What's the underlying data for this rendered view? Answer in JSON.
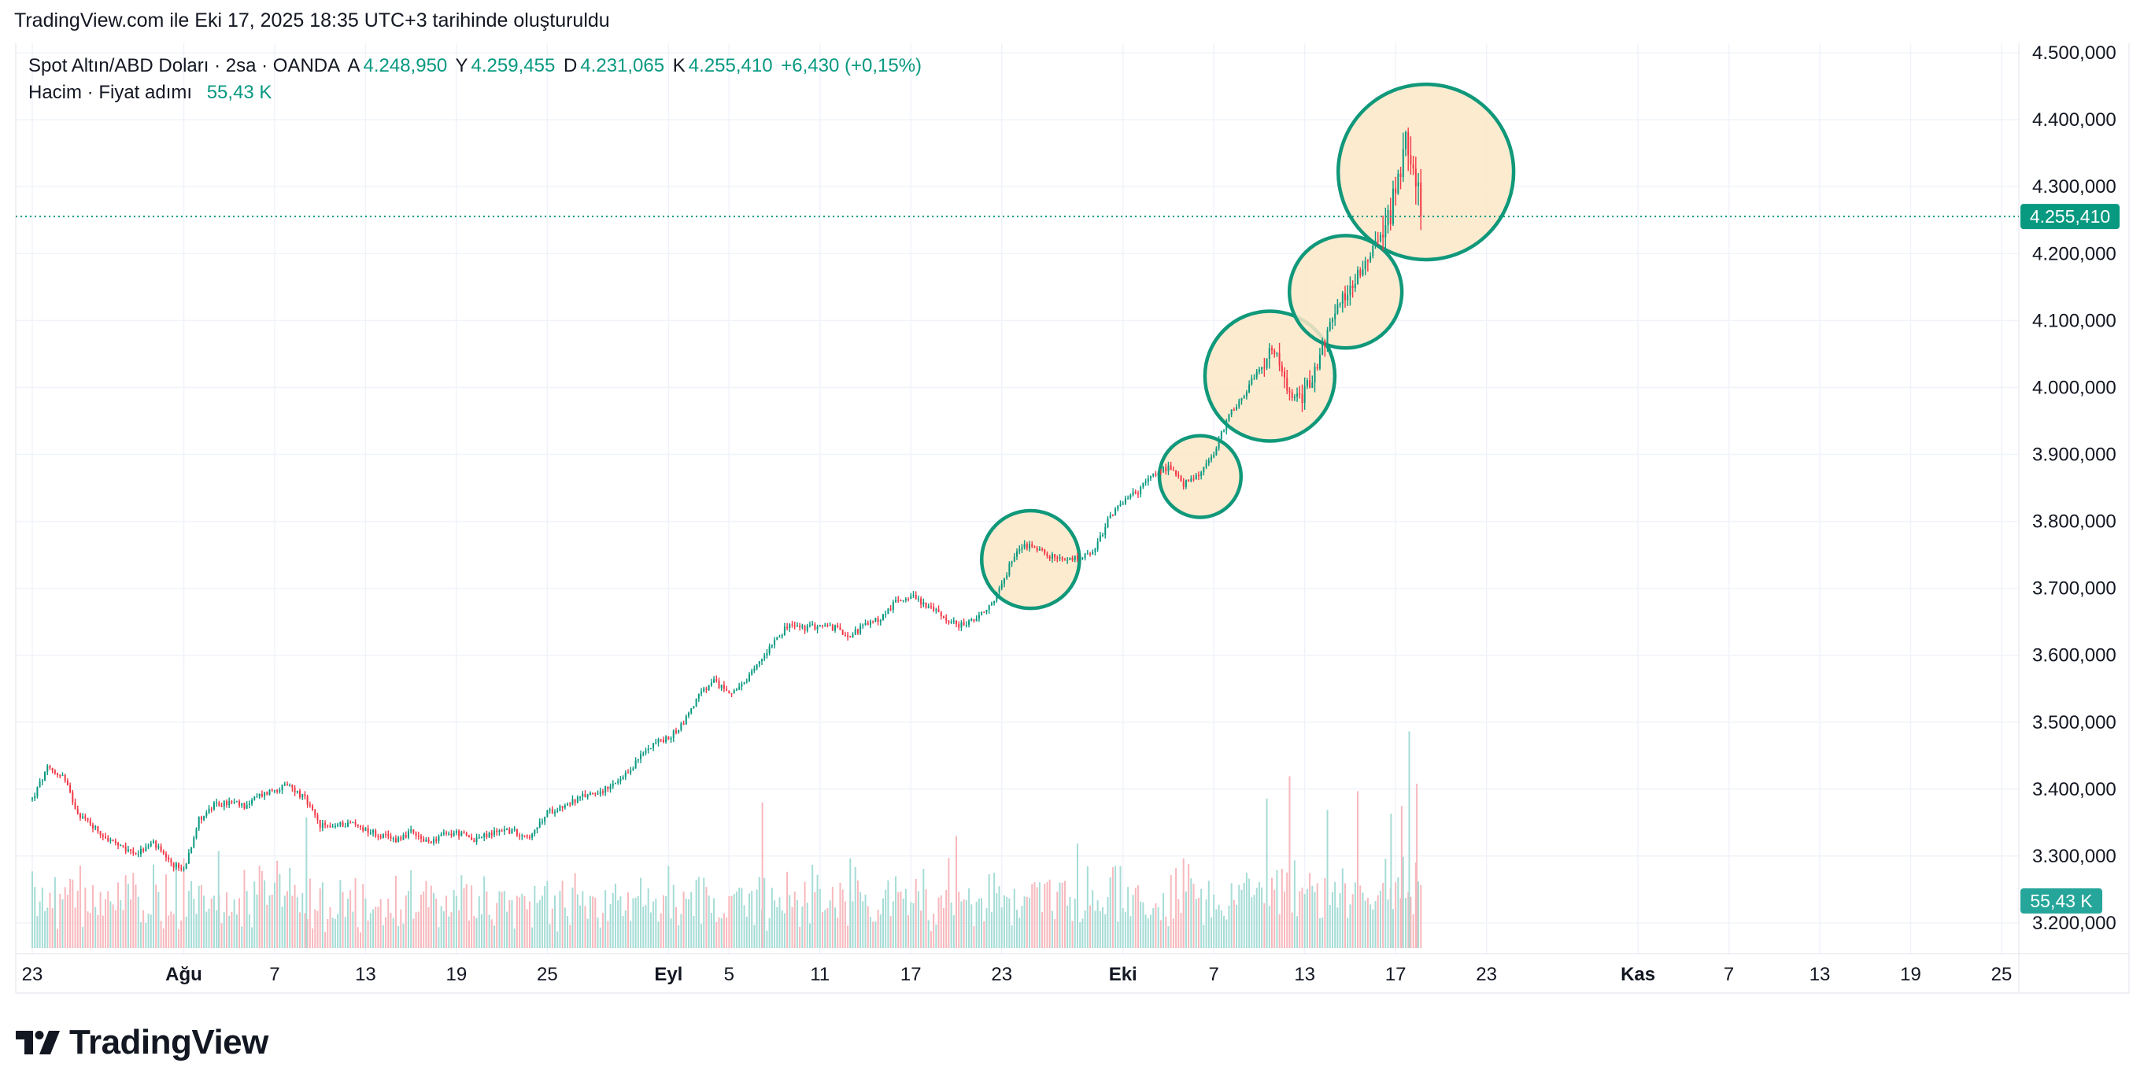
{
  "header": {
    "text": "TradingView.com ile Eki 17, 2025 18:35 UTC+3 tarihinde oluşturuldu"
  },
  "legend": {
    "symbol": "Spot Altın/ABD Doları · 2sa · OANDA",
    "open_label": "A",
    "open": "4.248,950",
    "high_label": "Y",
    "high": "4.259,455",
    "low_label": "D",
    "low": "4.231,065",
    "close_label": "K",
    "close": "4.255,410",
    "change": "+6,430 (+0,15%)",
    "volume_label": "Hacim · Fiyat adımı",
    "volume_value": "55,43 K"
  },
  "colors": {
    "up": "#089981",
    "down": "#f23645",
    "vol_up": "#a5dcd6",
    "vol_down": "#f7b8bc",
    "circle_stroke": "#10987a",
    "circle_fill": "#fde8c8",
    "grid": "#f0f3fa",
    "text": "#131722"
  },
  "logo": {
    "text": "TradingView",
    "icon": "tradingview-logo-icon"
  },
  "chart_data": {
    "type": "candlestick",
    "title": "Spot Altın/ABD Doları · 2sa · OANDA",
    "ylim": [
      3150,
      4520
    ],
    "y_ticks": [
      {
        "value": 3200,
        "label": "3.200,000"
      },
      {
        "value": 3300,
        "label": "3.300,000"
      },
      {
        "value": 3400,
        "label": "3.400,000"
      },
      {
        "value": 3500,
        "label": "3.500,000"
      },
      {
        "value": 3600,
        "label": "3.600,000"
      },
      {
        "value": 3700,
        "label": "3.700,000"
      },
      {
        "value": 3800,
        "label": "3.800,000"
      },
      {
        "value": 3900,
        "label": "3.900,000"
      },
      {
        "value": 4000,
        "label": "4.000,000"
      },
      {
        "value": 4100,
        "label": "4.100,000"
      },
      {
        "value": 4200,
        "label": "4.200,000"
      },
      {
        "value": 4300,
        "label": "4.300,000"
      },
      {
        "value": 4400,
        "label": "4.400,000"
      },
      {
        "value": 4500,
        "label": "4.500,000"
      }
    ],
    "x_ticks": [
      {
        "day": -1,
        "label": "23",
        "bold": false
      },
      {
        "day": 9,
        "label": "Ağu",
        "bold": true
      },
      {
        "day": 15,
        "label": "7",
        "bold": false
      },
      {
        "day": 21,
        "label": "13",
        "bold": false
      },
      {
        "day": 27,
        "label": "19",
        "bold": false
      },
      {
        "day": 33,
        "label": "25",
        "bold": false
      },
      {
        "day": 41,
        "label": "Eyl",
        "bold": true
      },
      {
        "day": 45,
        "label": "5",
        "bold": false
      },
      {
        "day": 51,
        "label": "11",
        "bold": false
      },
      {
        "day": 57,
        "label": "17",
        "bold": false
      },
      {
        "day": 63,
        "label": "23",
        "bold": false
      },
      {
        "day": 71,
        "label": "Eki",
        "bold": true
      },
      {
        "day": 77,
        "label": "7",
        "bold": false
      },
      {
        "day": 83,
        "label": "13",
        "bold": false
      },
      {
        "day": 89,
        "label": "17",
        "bold": false
      },
      {
        "day": 95,
        "label": "23",
        "bold": false
      },
      {
        "day": 105,
        "label": "Kas",
        "bold": true
      },
      {
        "day": 111,
        "label": "7",
        "bold": false
      },
      {
        "day": 117,
        "label": "13",
        "bold": false
      },
      {
        "day": 123,
        "label": "19",
        "bold": false
      },
      {
        "day": 129,
        "label": "25",
        "bold": false
      }
    ],
    "price_path": [
      [
        -1,
        3385
      ],
      [
        0,
        3430
      ],
      [
        1,
        3420
      ],
      [
        2,
        3365
      ],
      [
        3,
        3345
      ],
      [
        4,
        3325
      ],
      [
        5,
        3310
      ],
      [
        6,
        3305
      ],
      [
        7,
        3320
      ],
      [
        8,
        3290
      ],
      [
        9,
        3280
      ],
      [
        10,
        3355
      ],
      [
        11,
        3375
      ],
      [
        12,
        3380
      ],
      [
        13,
        3375
      ],
      [
        14,
        3390
      ],
      [
        15,
        3400
      ],
      [
        16,
        3405
      ],
      [
        17,
        3385
      ],
      [
        18,
        3345
      ],
      [
        19,
        3345
      ],
      [
        20,
        3350
      ],
      [
        21,
        3340
      ],
      [
        22,
        3330
      ],
      [
        23,
        3325
      ],
      [
        24,
        3335
      ],
      [
        25,
        3320
      ],
      [
        26,
        3330
      ],
      [
        27,
        3335
      ],
      [
        28,
        3325
      ],
      [
        29,
        3330
      ],
      [
        30,
        3340
      ],
      [
        31,
        3335
      ],
      [
        32,
        3330
      ],
      [
        33,
        3365
      ],
      [
        34,
        3375
      ],
      [
        35,
        3385
      ],
      [
        36,
        3395
      ],
      [
        37,
        3400
      ],
      [
        38,
        3415
      ],
      [
        39,
        3445
      ],
      [
        40,
        3470
      ],
      [
        41,
        3475
      ],
      [
        42,
        3500
      ],
      [
        43,
        3540
      ],
      [
        44,
        3560
      ],
      [
        45,
        3545
      ],
      [
        46,
        3555
      ],
      [
        47,
        3590
      ],
      [
        48,
        3625
      ],
      [
        49,
        3645
      ],
      [
        50,
        3640
      ],
      [
        51,
        3645
      ],
      [
        52,
        3640
      ],
      [
        53,
        3630
      ],
      [
        54,
        3645
      ],
      [
        55,
        3655
      ],
      [
        56,
        3680
      ],
      [
        57,
        3690
      ],
      [
        58,
        3675
      ],
      [
        59,
        3660
      ],
      [
        60,
        3645
      ],
      [
        61,
        3650
      ],
      [
        62,
        3665
      ],
      [
        63,
        3705
      ],
      [
        64,
        3760
      ],
      [
        65,
        3765
      ],
      [
        66,
        3750
      ],
      [
        67,
        3740
      ],
      [
        68,
        3745
      ],
      [
        69,
        3750
      ],
      [
        70,
        3800
      ],
      [
        71,
        3830
      ],
      [
        72,
        3845
      ],
      [
        73,
        3870
      ],
      [
        74,
        3880
      ],
      [
        75,
        3855
      ],
      [
        76,
        3870
      ],
      [
        77,
        3900
      ],
      [
        78,
        3960
      ],
      [
        79,
        3990
      ],
      [
        80,
        4030
      ],
      [
        81,
        4055
      ],
      [
        82,
        3985
      ],
      [
        83,
        3990
      ],
      [
        84,
        4050
      ],
      [
        85,
        4110
      ],
      [
        86,
        4150
      ],
      [
        87,
        4190
      ],
      [
        88,
        4230
      ],
      [
        89,
        4285
      ],
      [
        89.6,
        4375
      ],
      [
        90.2,
        4340
      ],
      [
        90.8,
        4255
      ]
    ],
    "volume_spikes": [
      [
        0.5,
        95
      ],
      [
        9,
        120
      ],
      [
        11.3,
        130
      ],
      [
        14,
        110
      ],
      [
        17.1,
        175
      ],
      [
        25,
        90
      ],
      [
        41,
        110
      ],
      [
        47.2,
        195
      ],
      [
        53,
        120
      ],
      [
        60,
        150
      ],
      [
        68,
        140
      ],
      [
        75,
        120
      ],
      [
        80.5,
        200
      ],
      [
        82,
        230
      ],
      [
        84.5,
        185
      ],
      [
        86.5,
        210
      ],
      [
        88.7,
        180
      ],
      [
        89.4,
        190
      ],
      [
        89.9,
        290
      ],
      [
        90.4,
        220
      ]
    ],
    "volume_max": 300,
    "last_price": {
      "value": 4255.41,
      "label": "4.255,410"
    },
    "last_volume": {
      "label": "55,43 K"
    },
    "highlight_circles": [
      {
        "day": 64.9,
        "price": 3743,
        "radius_price": 73
      },
      {
        "day": 76.1,
        "price": 3867,
        "radius_price": 61
      },
      {
        "day": 80.7,
        "price": 4017,
        "radius_price": 97
      },
      {
        "day": 85.7,
        "price": 4143,
        "radius_price": 84
      },
      {
        "day": 91.0,
        "price": 4322,
        "radius_price": 131
      }
    ]
  }
}
